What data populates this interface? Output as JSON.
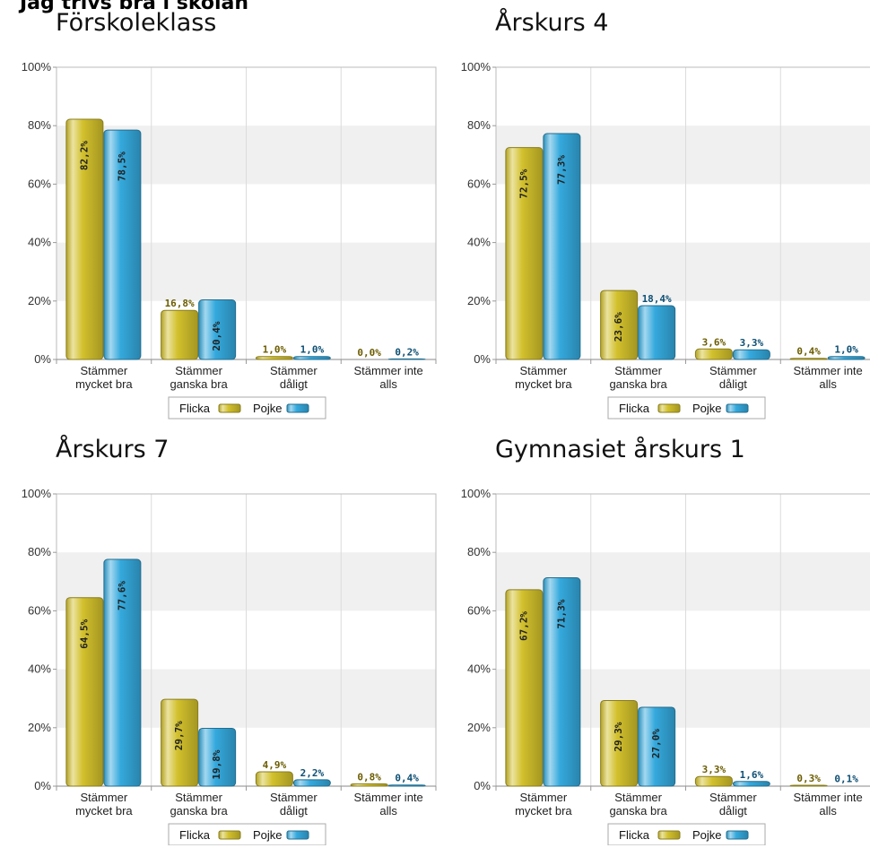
{
  "page_title": "Jag trivs bra i skolan",
  "colors": {
    "flicka": "#d2c02c",
    "pojke": "#35a9dd",
    "band": "#f0f0f0",
    "grid": "#dcdcdc"
  },
  "chart_data": [
    {
      "type": "bar",
      "title": "Förskoleklass",
      "categories": [
        [
          "Stämmer",
          "mycket bra"
        ],
        [
          "Stämmer",
          "ganska bra"
        ],
        [
          "Stämmer",
          "dåligt"
        ],
        [
          "Stämmer inte",
          "alls"
        ]
      ],
      "series": [
        {
          "name": "Flicka",
          "values": [
            82.2,
            16.8,
            1.0,
            0.0
          ],
          "labels": [
            "82,2%",
            "16,8%",
            "1,0%",
            "0,0%"
          ]
        },
        {
          "name": "Pojke",
          "values": [
            78.5,
            20.4,
            1.0,
            0.2
          ],
          "labels": [
            "78,5%",
            "20,4%",
            "1,0%",
            "0,2%"
          ]
        }
      ],
      "yticks": [
        "0%",
        "20%",
        "40%",
        "60%",
        "80%",
        "100%"
      ],
      "ylim": [
        0,
        100
      ]
    },
    {
      "type": "bar",
      "title": "Årskurs 4",
      "categories": [
        [
          "Stämmer",
          "mycket bra"
        ],
        [
          "Stämmer",
          "ganska bra"
        ],
        [
          "Stämmer",
          "dåligt"
        ],
        [
          "Stämmer inte",
          "alls"
        ]
      ],
      "series": [
        {
          "name": "Flicka",
          "values": [
            72.5,
            23.6,
            3.6,
            0.4
          ],
          "labels": [
            "72,5%",
            "23,6%",
            "3,6%",
            "0,4%"
          ]
        },
        {
          "name": "Pojke",
          "values": [
            77.3,
            18.4,
            3.3,
            1.0
          ],
          "labels": [
            "77,3%",
            "18,4%",
            "3,3%",
            "1,0%"
          ]
        }
      ],
      "yticks": [
        "0%",
        "20%",
        "40%",
        "60%",
        "80%",
        "100%"
      ],
      "ylim": [
        0,
        100
      ]
    },
    {
      "type": "bar",
      "title": "Årskurs 7",
      "categories": [
        [
          "Stämmer",
          "mycket bra"
        ],
        [
          "Stämmer",
          "ganska bra"
        ],
        [
          "Stämmer",
          "dåligt"
        ],
        [
          "Stämmer inte",
          "alls"
        ]
      ],
      "series": [
        {
          "name": "Flicka",
          "values": [
            64.5,
            29.7,
            4.9,
            0.8
          ],
          "labels": [
            "64,5%",
            "29,7%",
            "4,9%",
            "0,8%"
          ]
        },
        {
          "name": "Pojke",
          "values": [
            77.6,
            19.8,
            2.2,
            0.4
          ],
          "labels": [
            "77,6%",
            "19,8%",
            "2,2%",
            "0,4%"
          ]
        }
      ],
      "yticks": [
        "0%",
        "20%",
        "40%",
        "60%",
        "80%",
        "100%"
      ],
      "ylim": [
        0,
        100
      ]
    },
    {
      "type": "bar",
      "title": "Gymnasiet årskurs 1",
      "categories": [
        [
          "Stämmer",
          "mycket bra"
        ],
        [
          "Stämmer",
          "ganska bra"
        ],
        [
          "Stämmer",
          "dåligt"
        ],
        [
          "Stämmer inte",
          "alls"
        ]
      ],
      "series": [
        {
          "name": "Flicka",
          "values": [
            67.2,
            29.3,
            3.3,
            0.3
          ],
          "labels": [
            "67,2%",
            "29,3%",
            "3,3%",
            "0,3%"
          ]
        },
        {
          "name": "Pojke",
          "values": [
            71.3,
            27.0,
            1.6,
            0.1
          ],
          "labels": [
            "71,3%",
            "27,0%",
            "1,6%",
            "0,1%"
          ]
        }
      ],
      "yticks": [
        "0%",
        "20%",
        "40%",
        "60%",
        "80%",
        "100%"
      ],
      "ylim": [
        0,
        100
      ]
    }
  ]
}
